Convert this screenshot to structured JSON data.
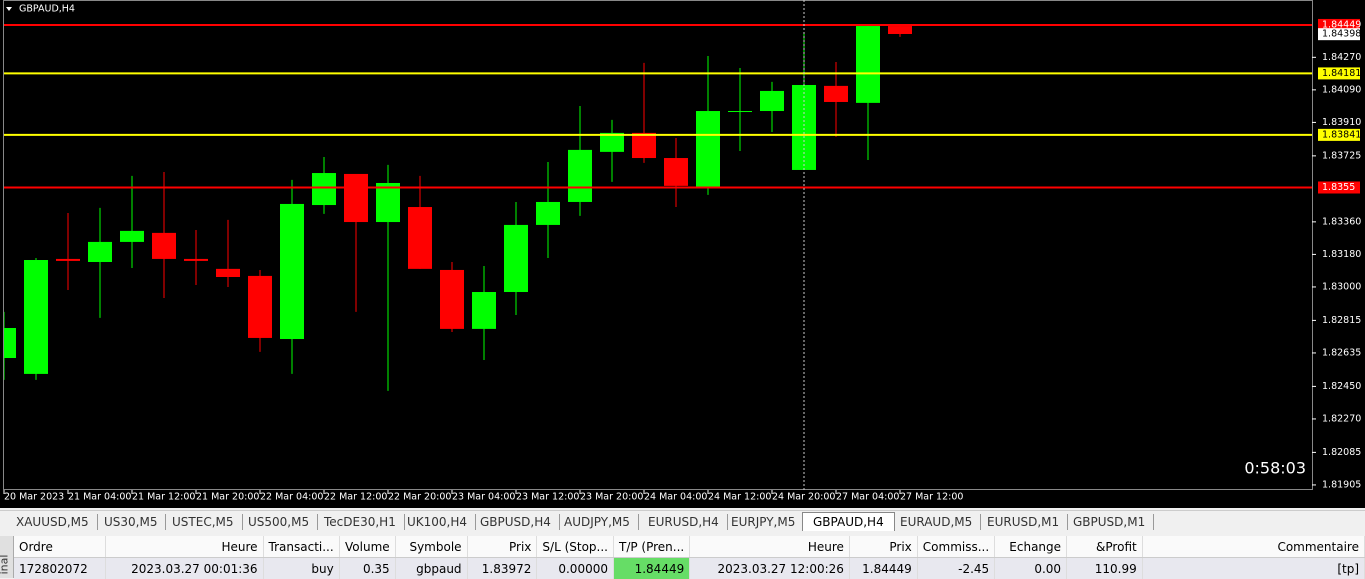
{
  "window": {
    "title": "GBPAUD,H4",
    "timer": "0:58:03"
  },
  "chart_data": {
    "type": "candlestick",
    "categories": [
      "20 Mar 2023",
      null,
      "21 Mar 04:00",
      null,
      "21 Mar 12:00",
      null,
      "21 Mar 20:00",
      null,
      "22 Mar 04:00",
      null,
      "22 Mar 12:00",
      null,
      "22 Mar 20:00",
      null,
      "23 Mar 04:00",
      null,
      "23 Mar 12:00",
      null,
      "23 Mar 20:00",
      null,
      "24 Mar 04:00",
      null,
      "24 Mar 12:00",
      null,
      "24 Mar 20:00",
      null,
      "27 Mar 04:00",
      null,
      "27 Mar 12:00"
    ],
    "open": [
      1.82607,
      1.82519,
      1.83155,
      1.83138,
      1.83249,
      1.83299,
      1.83155,
      1.831,
      1.83061,
      1.82712,
      1.83453,
      1.83625,
      1.83359,
      1.83442,
      1.83094,
      1.82768,
      1.82972,
      1.83343,
      1.8347,
      1.83747,
      1.83852,
      1.83713,
      1.83553,
      1.83973,
      1.83973,
      1.83647,
      1.84112,
      1.84018,
      1.84443
    ],
    "high": [
      1.82862,
      1.8316,
      1.83409,
      1.83437,
      1.83614,
      1.83636,
      1.83315,
      1.83371,
      1.83094,
      1.83592,
      1.83719,
      1.83625,
      1.83675,
      1.83614,
      1.83138,
      1.83116,
      1.8347,
      1.83691,
      1.84001,
      1.83924,
      1.84239,
      1.83824,
      1.84277,
      1.84211,
      1.84134,
      1.84405,
      1.84244,
      1.84443,
      1.84443
    ],
    "low": [
      1.82486,
      1.82486,
      1.82983,
      1.82829,
      1.83105,
      1.82939,
      1.83011,
      1.83,
      1.82641,
      1.82519,
      1.83404,
      1.82862,
      1.82425,
      1.831,
      1.82751,
      1.82596,
      1.82845,
      1.8316,
      1.83393,
      1.83581,
      1.83686,
      1.83442,
      1.83509,
      1.83752,
      1.83857,
      1.83647,
      1.8383,
      1.83702,
      1.84383
    ],
    "close": [
      1.82773,
      1.83149,
      1.83144,
      1.83249,
      1.8331,
      1.83155,
      1.83144,
      1.83055,
      1.82718,
      1.83459,
      1.8363,
      1.83359,
      1.83575,
      1.831,
      1.82768,
      1.82972,
      1.83343,
      1.8347,
      1.83758,
      1.83852,
      1.83713,
      1.83559,
      1.83973,
      1.83973,
      1.84084,
      1.84117,
      1.84023,
      1.84443,
      1.84399
    ],
    "up_color": "#00ff00",
    "down_color": "#ff0000",
    "ylim": [
      1.81877,
      1.84587
    ],
    "yticks": [
      {
        "value": 1.8427,
        "label": "1.84270"
      },
      {
        "value": 1.8409,
        "label": "1.84090"
      },
      {
        "value": 1.8391,
        "label": "1.83910"
      },
      {
        "value": 1.83725,
        "label": "1.83725"
      },
      {
        "value": 1.8336,
        "label": "1.83360"
      },
      {
        "value": 1.8318,
        "label": "1.83180"
      },
      {
        "value": 1.83,
        "label": "1.83000"
      },
      {
        "value": 1.82815,
        "label": "1.82815"
      },
      {
        "value": 1.82635,
        "label": "1.82635"
      },
      {
        "value": 1.8245,
        "label": "1.82450"
      },
      {
        "value": 1.8227,
        "label": "1.82270"
      },
      {
        "value": 1.82085,
        "label": "1.82085"
      },
      {
        "value": 1.81905,
        "label": "1.81905"
      }
    ],
    "hlines": [
      {
        "value": 1.84449,
        "color": "#ff0000"
      },
      {
        "value": 1.84181,
        "color": "#ffff00"
      },
      {
        "value": 1.83841,
        "color": "#ffff00"
      },
      {
        "value": 1.8355,
        "color": "#ff0000"
      }
    ],
    "current_price": 1.84398
  },
  "tabs": {
    "items": [
      "XAUUSD,M5",
      "US30,M5",
      "USTEC,M5",
      "US500,M5",
      "TecDE30,H1",
      "UK100,H4",
      "GBPUSD,H4",
      "AUDJPY,M5",
      "EURUSD,H4",
      "EURJPY,M5",
      "GBPAUD,H4",
      "EURAUD,M5",
      "EURUSD,M1",
      "GBPUSD,M1"
    ],
    "active": 10
  },
  "table": {
    "headers": [
      "Ordre",
      "Heure",
      "Transacti...",
      "Volume",
      "Symbole",
      "Prix",
      "S/L (Stop...",
      "T/P (Pren...",
      "Heure",
      "Prix",
      "Commiss...",
      "Echange",
      "&Profit",
      "Commentaire"
    ],
    "rows": [
      [
        "172802072",
        "2023.03.27 00:01:36",
        "buy",
        "0.35",
        "gbpaud",
        "1.83972",
        "0.00000",
        "1.84449",
        "2023.03.27 12:00:26",
        "1.84449",
        "-2.45",
        "0.00",
        "110.99",
        "[tp]"
      ]
    ]
  },
  "side_label": "inal"
}
